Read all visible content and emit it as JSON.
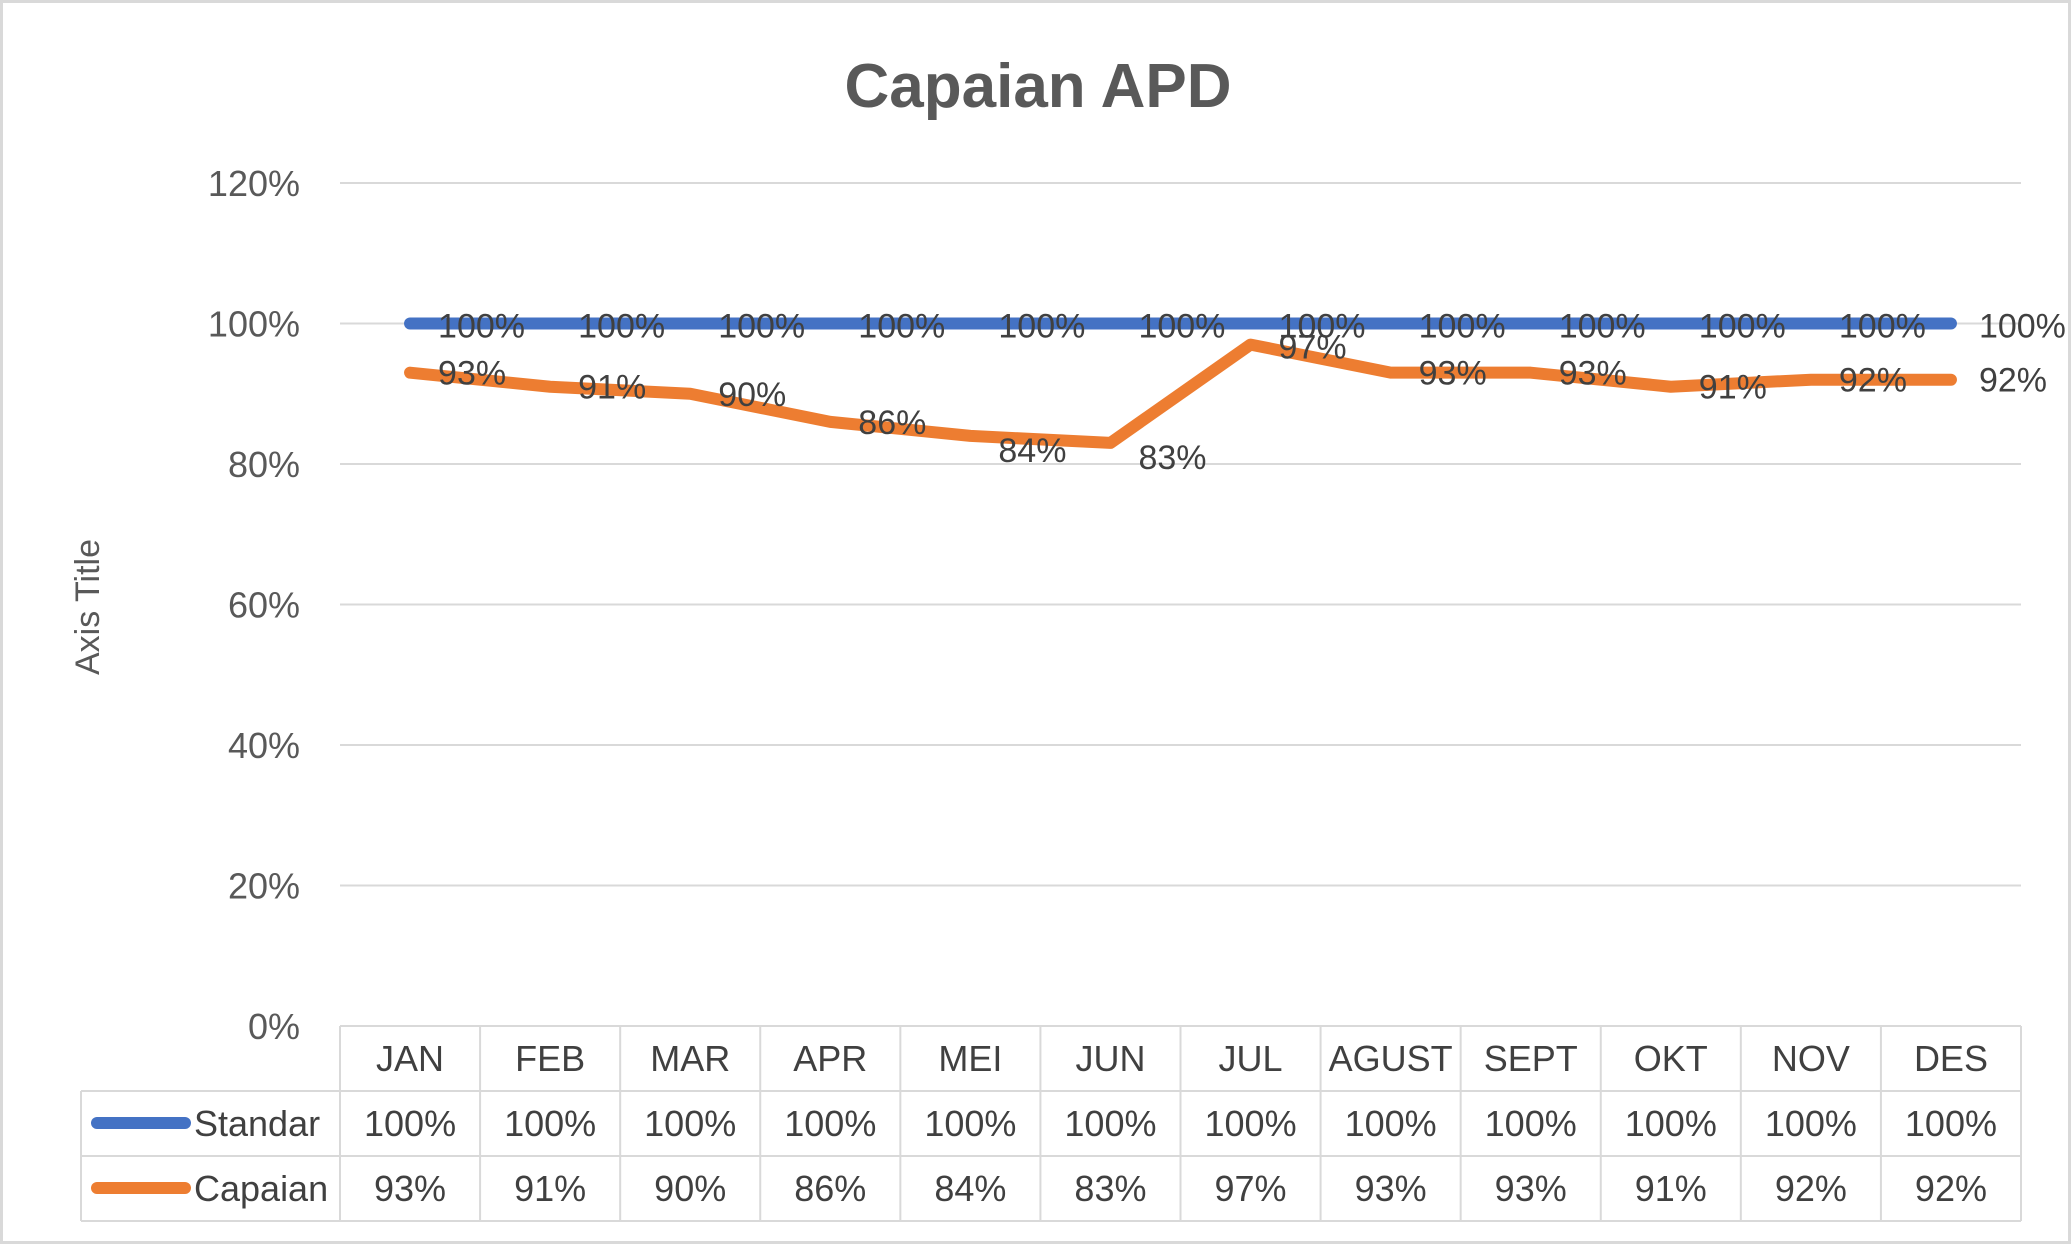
{
  "chart_data": {
    "type": "line",
    "title": "Capaian APD",
    "ylabel": "Axis Title",
    "xlabel": "",
    "ylim": [
      0,
      1.2
    ],
    "y_ticks": [
      "0%",
      "20%",
      "40%",
      "60%",
      "80%",
      "100%",
      "120%"
    ],
    "categories": [
      "JAN",
      "FEB",
      "MAR",
      "APR",
      "MEI",
      "JUN",
      "JUL",
      "AGUST",
      "SEPT",
      "OKT",
      "NOV",
      "DES"
    ],
    "grid": true,
    "data_table": true,
    "series": [
      {
        "name": "Standar",
        "color": "#4472C4",
        "values": [
          1.0,
          1.0,
          1.0,
          1.0,
          1.0,
          1.0,
          1.0,
          1.0,
          1.0,
          1.0,
          1.0,
          1.0
        ],
        "labels": [
          "100%",
          "100%",
          "100%",
          "100%",
          "100%",
          "100%",
          "100%",
          "100%",
          "100%",
          "100%",
          "100%",
          "100%"
        ]
      },
      {
        "name": "Capaian",
        "color": "#ED7D31",
        "values": [
          0.93,
          0.91,
          0.9,
          0.86,
          0.84,
          0.83,
          0.97,
          0.93,
          0.93,
          0.91,
          0.92,
          0.92
        ],
        "labels": [
          "93%",
          "91%",
          "90%",
          "86%",
          "84%",
          "83%",
          "97%",
          "93%",
          "93%",
          "91%",
          "92%",
          "92%"
        ]
      }
    ]
  }
}
